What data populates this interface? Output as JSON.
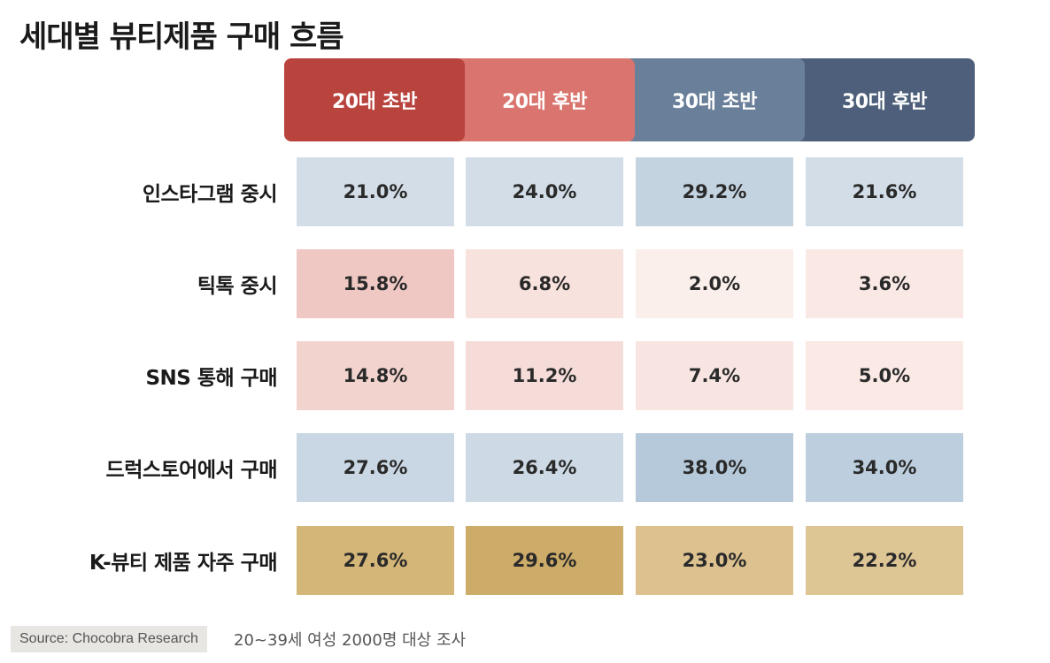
{
  "title": "세대별 뷰티제품 구매 흐름",
  "chart_data": {
    "type": "table",
    "columns": [
      "20대 초반",
      "20대 후반",
      "30대 초반",
      "30대 후반"
    ],
    "rows": [
      {
        "label": "인스타그램 중시",
        "values": [
          21.0,
          24.0,
          29.2,
          21.6
        ],
        "display": [
          "21.0%",
          "24.0%",
          "29.2%",
          "21.6%"
        ]
      },
      {
        "label": "틱톡 중시",
        "values": [
          15.8,
          6.8,
          2.0,
          3.6
        ],
        "display": [
          "15.8%",
          "6.8%",
          "2.0%",
          "3.6%"
        ]
      },
      {
        "label": "SNS 통해 구매",
        "values": [
          14.8,
          11.2,
          7.4,
          5.0
        ],
        "display": [
          "14.8%",
          "11.2%",
          "7.4%",
          "5.0%"
        ]
      },
      {
        "label": "드럭스토어에서 구매",
        "values": [
          27.6,
          26.4,
          38.0,
          34.0
        ],
        "display": [
          "27.6%",
          "26.4%",
          "38.0%",
          "34.0%"
        ]
      },
      {
        "label": "K-뷰티 제품 자주 구매",
        "values": [
          27.6,
          29.6,
          23.0,
          22.2
        ],
        "display": [
          "27.6%",
          "29.6%",
          "23.0%",
          "22.2%"
        ]
      }
    ],
    "unit": "%"
  },
  "header_colors": [
    "#b9433d",
    "#d9756e",
    "#6a7f99",
    "#4d5f7a"
  ],
  "cell_colors": [
    [
      "#d2dde7",
      "#d2dde7",
      "#c4d3e0",
      "#d2dde7"
    ],
    [
      "#efc8c3",
      "#f7e2dd",
      "#fbefeb",
      "#f9e8e4"
    ],
    [
      "#f2d3ce",
      "#f5dcd8",
      "#f8e5e1",
      "#fae9e5"
    ],
    [
      "#c9d7e4",
      "#cddae6",
      "#b6c9da",
      "#bdcfdf"
    ],
    [
      "#d4b678",
      "#cdab68",
      "#ddc290",
      "#dec594"
    ]
  ],
  "source": "Source: Chocobra Research",
  "survey_note": "20~39세 여성 2000명 대상 조사"
}
